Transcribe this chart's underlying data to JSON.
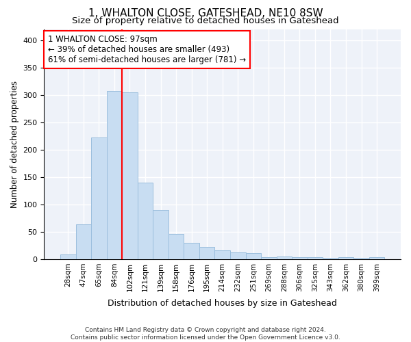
{
  "title": "1, WHALTON CLOSE, GATESHEAD, NE10 8SW",
  "subtitle": "Size of property relative to detached houses in Gateshead",
  "xlabel": "Distribution of detached houses by size in Gateshead",
  "ylabel": "Number of detached properties",
  "categories": [
    "28sqm",
    "47sqm",
    "65sqm",
    "84sqm",
    "102sqm",
    "121sqm",
    "139sqm",
    "158sqm",
    "176sqm",
    "195sqm",
    "214sqm",
    "232sqm",
    "251sqm",
    "269sqm",
    "288sqm",
    "306sqm",
    "325sqm",
    "343sqm",
    "362sqm",
    "380sqm",
    "399sqm"
  ],
  "values": [
    8,
    63,
    222,
    307,
    304,
    140,
    90,
    46,
    30,
    22,
    16,
    12,
    11,
    4,
    5,
    3,
    3,
    2,
    4,
    2,
    4
  ],
  "bar_color": "#c8ddf2",
  "bar_edge_color": "#9bbedd",
  "red_line_index": 4,
  "annotation_line1": "1 WHALTON CLOSE: 97sqm",
  "annotation_line2": "← 39% of detached houses are smaller (493)",
  "annotation_line3": "61% of semi-detached houses are larger (781) →",
  "ylim": [
    0,
    420
  ],
  "yticks": [
    0,
    50,
    100,
    150,
    200,
    250,
    300,
    350,
    400
  ],
  "background_color": "#eef2f9",
  "grid_color": "white",
  "footer": "Contains HM Land Registry data © Crown copyright and database right 2024.\nContains public sector information licensed under the Open Government Licence v3.0."
}
